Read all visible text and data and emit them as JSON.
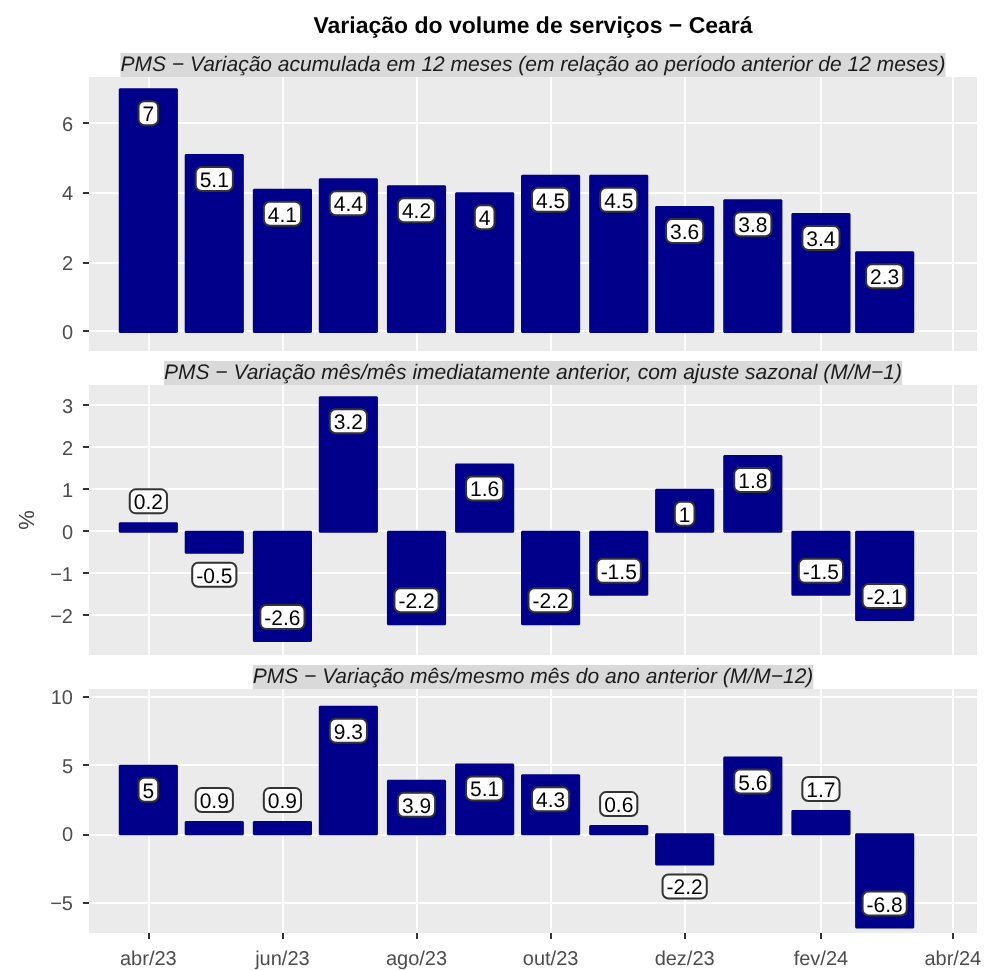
{
  "chart_data": [
    {
      "type": "bar",
      "title": "Variação do volume de serviços − Ceará",
      "subtitle": "PMS − Variação acumulada em 12 meses (em relação ao período anterior de 12 meses)",
      "x": [
        "2023-04",
        "2023-05",
        "2023-06",
        "2023-07",
        "2023-08",
        "2023-09",
        "2023-10",
        "2023-11",
        "2023-12",
        "2024-01",
        "2024-02",
        "2024-03"
      ],
      "values": [
        7,
        5.1,
        4.1,
        4.4,
        4.2,
        4,
        4.5,
        4.5,
        3.6,
        3.8,
        3.4,
        2.3
      ],
      "color": "#00008b",
      "data_labels": true,
      "xlim": [
        "2023-03-05",
        "2024-04-12"
      ],
      "xticks": [
        {
          "value": "2023-04",
          "label": null
        },
        {
          "value": "2023-06",
          "label": null
        },
        {
          "value": "2023-08",
          "label": null
        },
        {
          "value": "2023-10",
          "label": null
        },
        {
          "value": "2023-12",
          "label": null
        },
        {
          "value": "2024-02",
          "label": null
        },
        {
          "value": "2024-04",
          "label": null
        }
      ],
      "ylim": [
        -0.55,
        7.35
      ],
      "yticks": [
        0,
        2,
        4,
        6
      ],
      "grid": true,
      "tick_labels": "y"
    },
    {
      "type": "bar",
      "subtitle": "PMS − Variação mês/mês imediatamente anterior, com ajuste sazonal (M/M−1)",
      "ylabel": "%",
      "x": [
        "2023-04",
        "2023-05",
        "2023-06",
        "2023-07",
        "2023-08",
        "2023-09",
        "2023-10",
        "2023-11",
        "2023-12",
        "2024-01",
        "2024-02",
        "2024-03"
      ],
      "values": [
        0.2,
        -0.5,
        -2.6,
        3.2,
        -2.2,
        1.6,
        -2.2,
        -1.5,
        1,
        1.8,
        -1.5,
        -2.1
      ],
      "color": "#00008b",
      "data_labels": true,
      "xlim": [
        "2023-03-05",
        "2024-04-12"
      ],
      "xticks": [
        {
          "value": "2023-04",
          "label": null
        },
        {
          "value": "2023-06",
          "label": null
        },
        {
          "value": "2023-08",
          "label": null
        },
        {
          "value": "2023-10",
          "label": null
        },
        {
          "value": "2023-12",
          "label": null
        },
        {
          "value": "2024-02",
          "label": null
        },
        {
          "value": "2024-04",
          "label": null
        }
      ],
      "ylim": [
        -2.93,
        3.49
      ],
      "yticks": [
        -2,
        -1,
        0,
        1,
        2,
        3
      ],
      "grid": true,
      "tick_labels": "y"
    },
    {
      "type": "bar",
      "subtitle": "PMS − Variação mês/mesmo mês do ano anterior (M/M−12)",
      "x": [
        "2023-04",
        "2023-05",
        "2023-06",
        "2023-07",
        "2023-08",
        "2023-09",
        "2023-10",
        "2023-11",
        "2023-12",
        "2024-01",
        "2024-02",
        "2024-03"
      ],
      "values": [
        5,
        0.9,
        0.9,
        9.3,
        3.9,
        5.1,
        4.3,
        0.6,
        -2.2,
        5.6,
        1.7,
        -6.8
      ],
      "color": "#00008b",
      "data_labels": true,
      "xlim": [
        "2023-03-05",
        "2024-04-12"
      ],
      "xticks": [
        {
          "value": "2023-04",
          "label": "abr/23"
        },
        {
          "value": "2023-06",
          "label": "jun/23"
        },
        {
          "value": "2023-08",
          "label": "ago/23"
        },
        {
          "value": "2023-10",
          "label": "out/23"
        },
        {
          "value": "2023-12",
          "label": "dez/23"
        },
        {
          "value": "2024-02",
          "label": "fev/24"
        },
        {
          "value": "2024-04",
          "label": "abr/24"
        }
      ],
      "ylim": [
        -7.2,
        10.6
      ],
      "yticks": [
        -5,
        0,
        5,
        10
      ],
      "grid": true
    }
  ]
}
